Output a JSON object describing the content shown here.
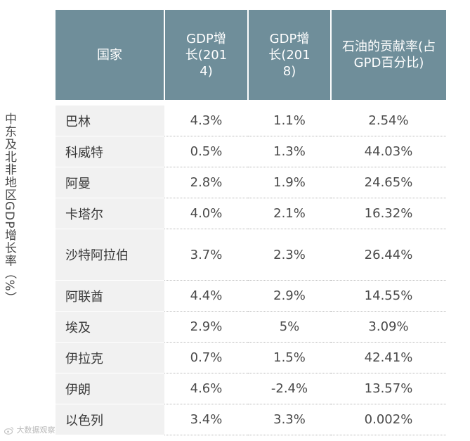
{
  "side_label": "中东及北非地区GDP增长率（%）",
  "table": {
    "headers": [
      "国家",
      "GDP增长(2014)",
      "GDP增长(2018)",
      "石油的贡献率(占GPD百分比)"
    ],
    "rows": [
      {
        "country": "巴林",
        "gdp2014": "4.3%",
        "gdp2018": "1.1%",
        "oil": "2.54%"
      },
      {
        "country": "科威特",
        "gdp2014": "0.5%",
        "gdp2018": "1.3%",
        "oil": "44.03%"
      },
      {
        "country": "阿曼",
        "gdp2014": "2.8%",
        "gdp2018": "1.9%",
        "oil": "24.65%"
      },
      {
        "country": "卡塔尔",
        "gdp2014": "4.0%",
        "gdp2018": "2.1%",
        "oil": "16.32%"
      },
      {
        "country": "沙特阿拉伯",
        "gdp2014": "3.7%",
        "gdp2018": "2.3%",
        "oil": "26.44%"
      },
      {
        "country": "阿联酋",
        "gdp2014": "4.4%",
        "gdp2018": "2.9%",
        "oil": "14.55%"
      },
      {
        "country": "埃及",
        "gdp2014": "2.9%",
        "gdp2018": "5%",
        "oil": "3.09%"
      },
      {
        "country": "伊拉克",
        "gdp2014": "0.7%",
        "gdp2018": "1.5%",
        "oil": "42.41%"
      },
      {
        "country": "伊朗",
        "gdp2014": "4.6%",
        "gdp2018": "-2.4%",
        "oil": "13.57%"
      },
      {
        "country": "以色列",
        "gdp2014": "3.4%",
        "gdp2018": "3.3%",
        "oil": "0.002%"
      }
    ]
  },
  "watermark": "大数据观察",
  "colors": {
    "header_bg": "#6f8e9a",
    "country_bg": "#f1f1f1"
  }
}
